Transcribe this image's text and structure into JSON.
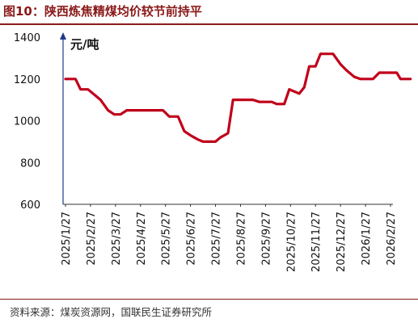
{
  "header": {
    "title": "图10：陕西炼焦精煤均价较节前持平"
  },
  "footer": {
    "source": "资料来源：煤炭资源网，国联民生证券研究所"
  },
  "chart_data": {
    "type": "line",
    "ylabel": "元/吨",
    "ylim": [
      600,
      1400
    ],
    "yticks": [
      600,
      800,
      1000,
      1200,
      1400
    ],
    "grid": false,
    "categories": [
      "2025/1/27",
      "2025/2/27",
      "2025/3/27",
      "2025/4/27",
      "2025/5/27",
      "2025/6/27",
      "2025/7/27",
      "2025/8/27",
      "2025/9/27",
      "2025/10/27",
      "2025/11/27",
      "2025/12/27",
      "2026/1/27",
      "2026/2/27"
    ],
    "colors": {
      "line": "#c0001a",
      "axis": "#1f3a8a"
    },
    "series": [
      {
        "name": "",
        "points": [
          [
            0.0,
            1200
          ],
          [
            0.4,
            1200
          ],
          [
            0.6,
            1150
          ],
          [
            0.9,
            1150
          ],
          [
            1.2,
            1120
          ],
          [
            1.4,
            1100
          ],
          [
            1.7,
            1050
          ],
          [
            1.95,
            1030
          ],
          [
            2.2,
            1030
          ],
          [
            2.45,
            1050
          ],
          [
            3.0,
            1050
          ],
          [
            3.5,
            1050
          ],
          [
            3.9,
            1050
          ],
          [
            4.15,
            1020
          ],
          [
            4.5,
            1020
          ],
          [
            4.75,
            950
          ],
          [
            5.0,
            930
          ],
          [
            5.3,
            910
          ],
          [
            5.5,
            900
          ],
          [
            6.0,
            900
          ],
          [
            6.2,
            920
          ],
          [
            6.5,
            940
          ],
          [
            6.7,
            1100
          ],
          [
            7.0,
            1100
          ],
          [
            7.5,
            1100
          ],
          [
            7.75,
            1090
          ],
          [
            8.25,
            1090
          ],
          [
            8.45,
            1080
          ],
          [
            8.75,
            1080
          ],
          [
            8.95,
            1150
          ],
          [
            9.35,
            1130
          ],
          [
            9.55,
            1160
          ],
          [
            9.75,
            1260
          ],
          [
            10.0,
            1260
          ],
          [
            10.2,
            1320
          ],
          [
            10.7,
            1320
          ],
          [
            11.0,
            1270
          ],
          [
            11.25,
            1240
          ],
          [
            11.55,
            1210
          ],
          [
            11.8,
            1200
          ],
          [
            12.3,
            1200
          ],
          [
            12.55,
            1230
          ],
          [
            13.0,
            1230
          ],
          [
            13.25,
            1230
          ],
          [
            13.4,
            1200
          ],
          [
            13.8,
            1200
          ]
        ]
      }
    ]
  }
}
